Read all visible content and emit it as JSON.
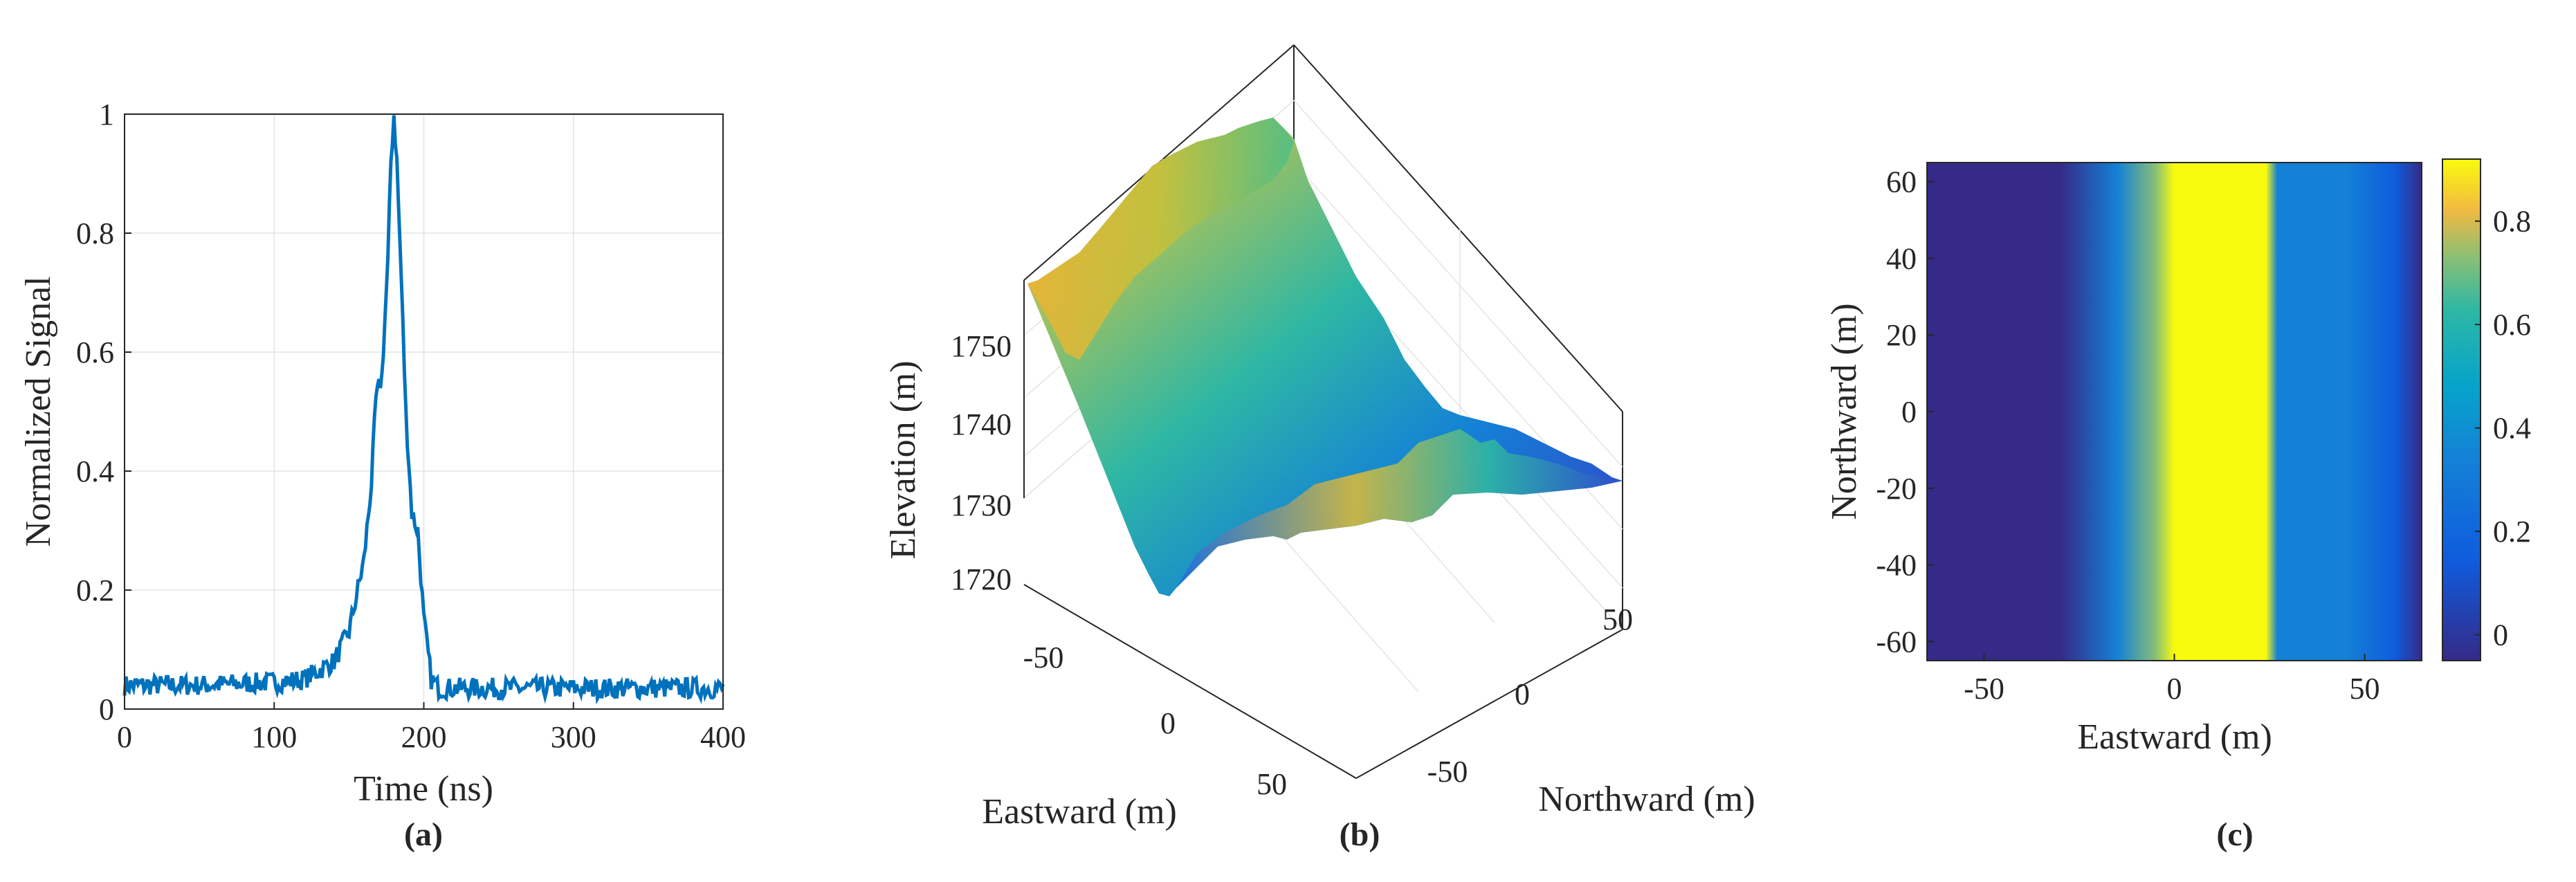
{
  "chart_data": [
    {
      "panel": "(a)",
      "type": "line",
      "xlabel": "Time (ns)",
      "ylabel": "Normalized Signal",
      "xlim": [
        0,
        400
      ],
      "ylim": [
        0,
        1
      ],
      "xticks": [
        "0",
        "100",
        "200",
        "300",
        "400"
      ],
      "yticks": [
        "0",
        "0.2",
        "0.4",
        "0.6",
        "0.8",
        "1"
      ],
      "grid": true,
      "series": [
        {
          "name": "signal",
          "color": "#0072BD",
          "x": [
            0,
            50,
            100,
            120,
            140,
            150,
            160,
            165,
            168,
            172,
            176,
            178,
            180,
            182,
            185,
            188,
            192,
            196,
            200,
            205,
            210,
            250,
            300,
            350,
            400
          ],
          "y": [
            0.04,
            0.04,
            0.045,
            0.05,
            0.08,
            0.13,
            0.25,
            0.38,
            0.52,
            0.56,
            0.75,
            0.92,
            1.0,
            0.92,
            0.72,
            0.5,
            0.33,
            0.3,
            0.15,
            0.05,
            0.035,
            0.035,
            0.035,
            0.035,
            0.035
          ]
        }
      ]
    },
    {
      "panel": "(b)",
      "type": "surface3d",
      "xlabel": "Eastward (m)",
      "ylabel": "Northward (m)",
      "zlabel": "Elevation (m)",
      "xticks": [
        "-50",
        "0",
        "50"
      ],
      "yticks": [
        "-50",
        "0",
        "50"
      ],
      "zticks": [
        "1720",
        "1730",
        "1740",
        "1750"
      ],
      "zlim": [
        1718,
        1758
      ],
      "colormap": "parula"
    },
    {
      "panel": "(c)",
      "type": "heatmap",
      "xlabel": "Eastward (m)",
      "ylabel": "Northward (m)",
      "xlim": [
        -65,
        65
      ],
      "ylim": [
        -65,
        65
      ],
      "xticks": [
        "-50",
        "0",
        "50"
      ],
      "yticks": [
        "60",
        "40",
        "20",
        "0",
        "-20",
        "-40",
        "-60"
      ],
      "colorbar_ticks": [
        "0.8",
        "0.6",
        "0.4",
        "0.2",
        "0"
      ],
      "clim": [
        -0.05,
        0.92
      ],
      "colormap": "parula",
      "column_profile_x": [
        -65,
        -30,
        -15,
        -5,
        0,
        10,
        24,
        27,
        35,
        45,
        58,
        65
      ],
      "column_profile_v": [
        0.0,
        0.02,
        0.25,
        0.65,
        0.85,
        0.88,
        0.86,
        0.3,
        0.3,
        0.25,
        0.1,
        0.0
      ]
    }
  ]
}
